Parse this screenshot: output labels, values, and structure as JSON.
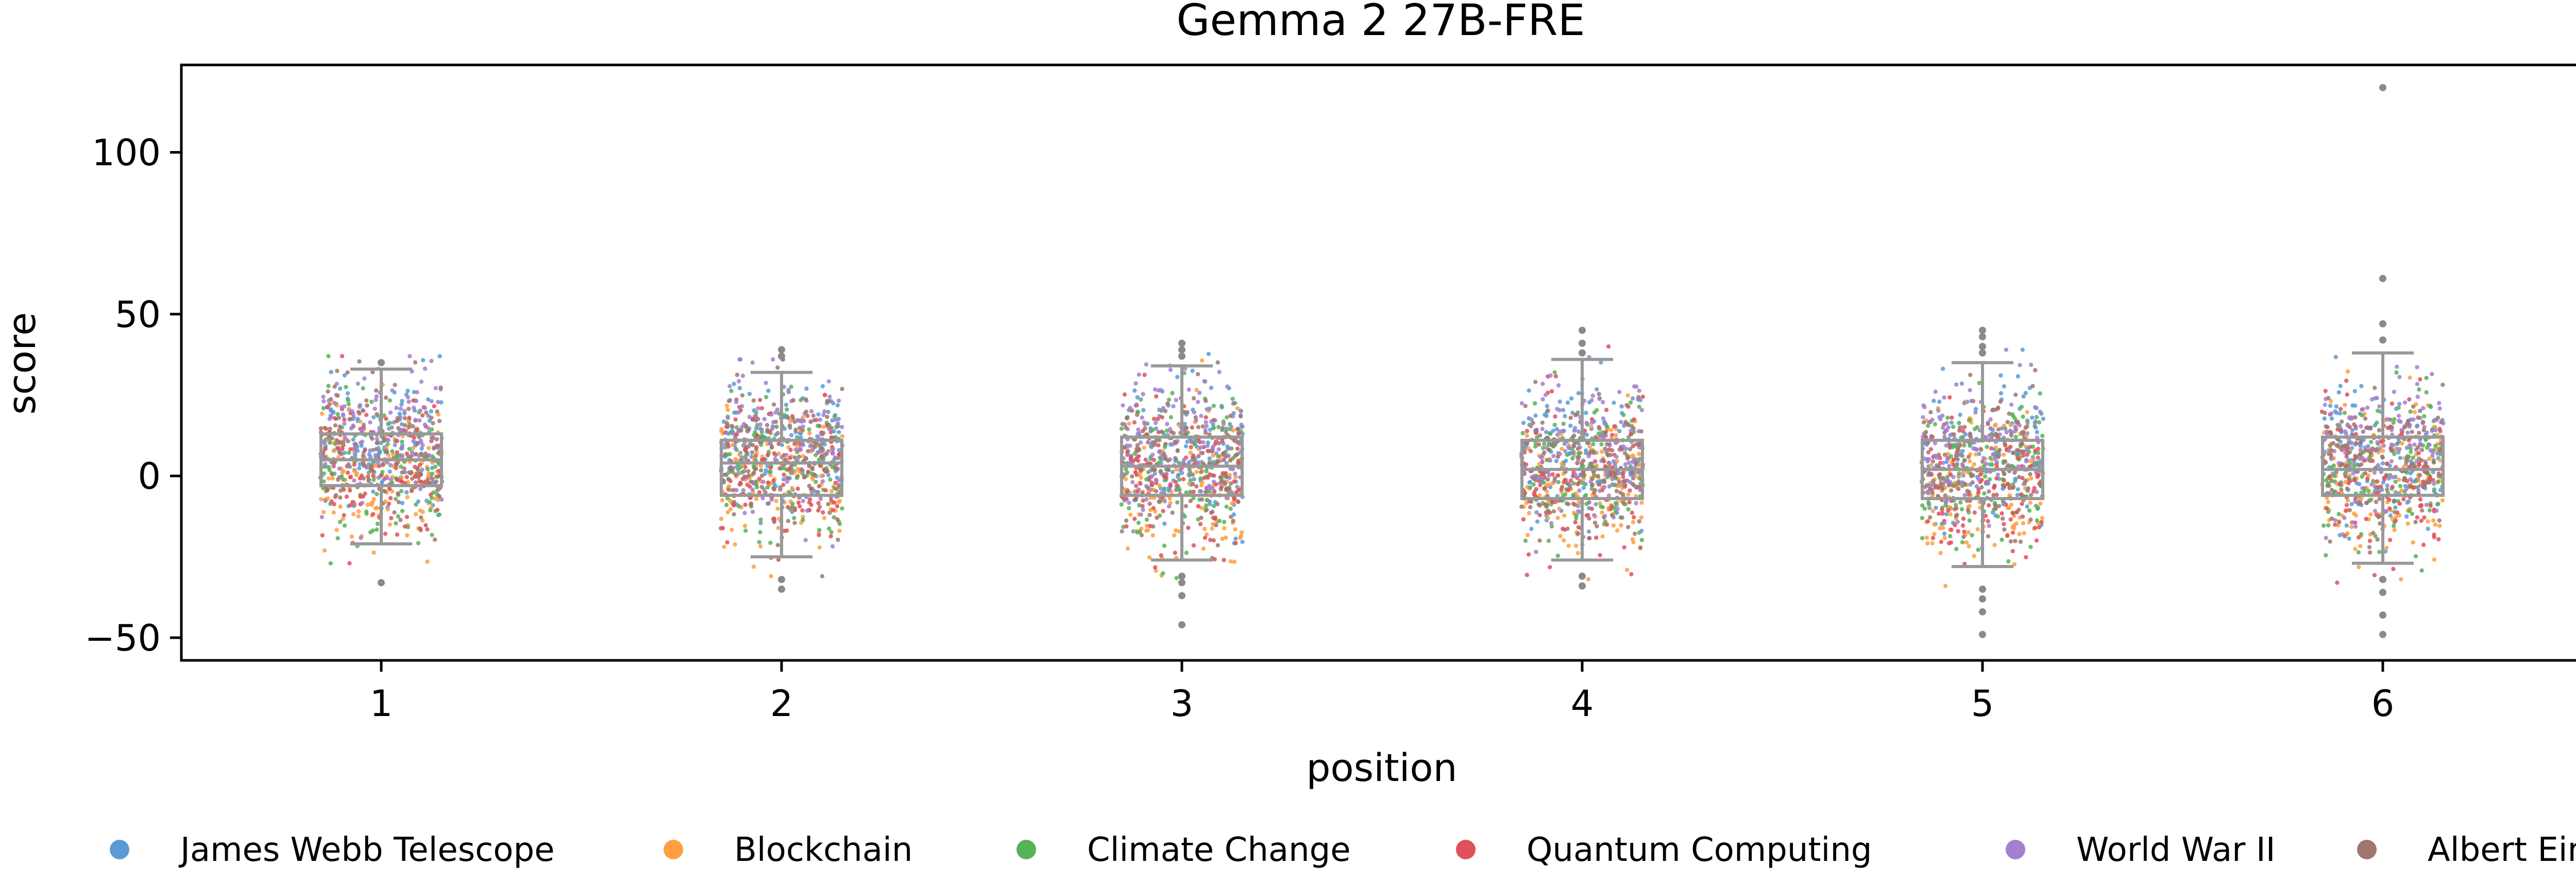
{
  "chart_data": {
    "type": "scatter",
    "subtype": "strip-with-boxplot",
    "title": "Gemma 2 27B-FRE",
    "xlabel": "position",
    "ylabel": "score",
    "categories": [
      "1",
      "2",
      "3",
      "4",
      "5",
      "6"
    ],
    "ylim": [
      -57,
      127
    ],
    "yticks": [
      -50,
      0,
      50,
      100
    ],
    "ytick_labels": [
      "−50",
      "0",
      "50",
      "100"
    ],
    "grid": false,
    "legend_position": "bottom",
    "box_color": "#999999",
    "series": [
      {
        "name": "James Webb Telescope",
        "color": "#5b9bd5",
        "mean_offset": 6
      },
      {
        "name": "Blockchain",
        "color": "#ff9f40",
        "mean_offset": -6
      },
      {
        "name": "Climate Change",
        "color": "#56b356",
        "mean_offset": 0
      },
      {
        "name": "Quantum Computing",
        "color": "#e0505a",
        "mean_offset": -4
      },
      {
        "name": "World War II",
        "color": "#a37fd0",
        "mean_offset": 9
      },
      {
        "name": "Albert Einstein",
        "color": "#a1776d",
        "mean_offset": 1
      }
    ],
    "boxes": [
      {
        "position": "1",
        "q1": -3,
        "median": 5,
        "q3": 13,
        "whisker_low": -21,
        "whisker_high": 33,
        "outliers": [
          -33,
          35
        ]
      },
      {
        "position": "2",
        "q1": -6,
        "median": 4,
        "q3": 11,
        "whisker_low": -25,
        "whisker_high": 32,
        "outliers": [
          -35,
          -32,
          37,
          39
        ]
      },
      {
        "position": "3",
        "q1": -6,
        "median": 3,
        "q3": 12,
        "whisker_low": -26,
        "whisker_high": 34,
        "outliers": [
          -46,
          -37,
          -33,
          -31,
          37,
          39,
          41
        ]
      },
      {
        "position": "4",
        "q1": -7,
        "median": 2,
        "q3": 11,
        "whisker_low": -26,
        "whisker_high": 36,
        "outliers": [
          -34,
          -31,
          38,
          41,
          45
        ]
      },
      {
        "position": "5",
        "q1": -7,
        "median": 2,
        "q3": 11,
        "whisker_low": -28,
        "whisker_high": 35,
        "outliers": [
          -49,
          -42,
          -38,
          -35,
          38,
          40,
          43,
          45
        ]
      },
      {
        "position": "6",
        "q1": -6,
        "median": 2,
        "q3": 12,
        "whisker_low": -27,
        "whisker_high": 38,
        "outliers": [
          -49,
          -43,
          -36,
          -32,
          42,
          47,
          61,
          120
        ]
      }
    ],
    "points_per_series_per_position": 130,
    "point_spread_sd": 11
  }
}
